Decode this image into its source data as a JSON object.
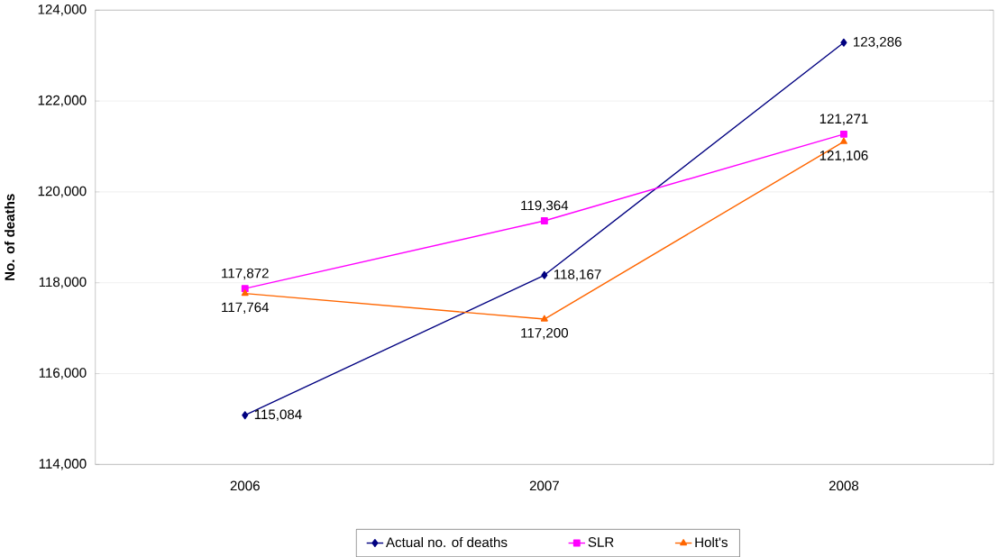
{
  "chart_data": {
    "type": "line",
    "ylabel": "No. of deaths",
    "categories": [
      "2006",
      "2007",
      "2008"
    ],
    "series": [
      {
        "name": "Actual no. of deaths",
        "color": "#000080",
        "marker": "diamond",
        "values": [
          115084,
          118167,
          123286
        ],
        "value_labels": [
          "115,084",
          "118,167",
          "123,286"
        ]
      },
      {
        "name": "SLR",
        "color": "#ff00ff",
        "marker": "square",
        "values": [
          117872,
          119364,
          121271
        ],
        "value_labels": [
          "117,872",
          "119,364",
          "121,271"
        ]
      },
      {
        "name": "Holt's",
        "color": "#ff6600",
        "marker": "triangle",
        "values": [
          117764,
          117200,
          121106
        ],
        "value_labels": [
          "117,764",
          "117,200",
          "121,106"
        ]
      }
    ],
    "ylim": [
      114000,
      124000
    ],
    "yticks": [
      {
        "value": 114000,
        "label": "114,000"
      },
      {
        "value": 116000,
        "label": "116,000"
      },
      {
        "value": 118000,
        "label": "118,000"
      },
      {
        "value": 120000,
        "label": "120,000"
      },
      {
        "value": 122000,
        "label": "122,000"
      },
      {
        "value": 124000,
        "label": "124,000"
      }
    ],
    "grid": "y",
    "legend": "bottom"
  }
}
